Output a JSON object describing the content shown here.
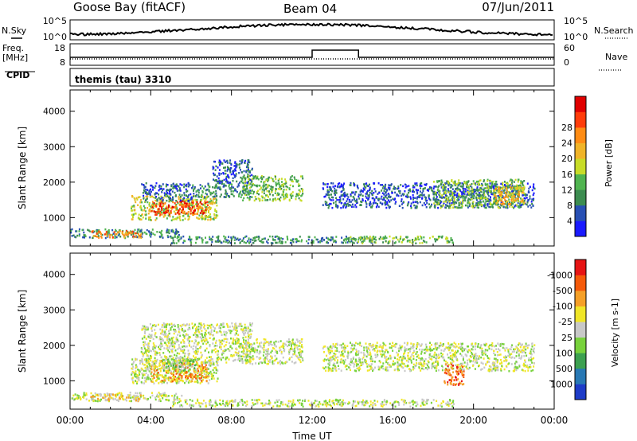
{
  "header": {
    "station": "Goose Bay (fitACF)",
    "beam": "Beam 04",
    "date": "07/Jun/2011"
  },
  "summary": {
    "nsky_label": "N.Sky",
    "nsearch_label": "N.Search",
    "nsky_ticks": [
      "10^5",
      "10^0"
    ],
    "nsearch_ticks": [
      "10^5",
      "10^0"
    ],
    "freq_label": "Freq.",
    "freq_unit": "[MHz]",
    "freq_ticks": [
      "18",
      "8"
    ],
    "nave_label": "Nave",
    "nave_ticks": [
      "60",
      "0"
    ],
    "cpid_label": "CPID",
    "cpid_value": "themis (tau) 3310"
  },
  "chart_data": [
    {
      "type": "heatmap",
      "panel": "power",
      "ylabel": "Slant Range [km]",
      "yticks": [
        1000,
        2000,
        3000,
        4000
      ],
      "ylim": [
        200,
        4600
      ],
      "xlim": [
        0,
        24
      ],
      "colorbar": {
        "label": "Power [dB]",
        "ticks": [
          "4",
          "8",
          "12",
          "16",
          "20",
          "24",
          "28"
        ],
        "colors": [
          "#1a1aff",
          "#2850b4",
          "#3c8c50",
          "#50b450",
          "#c8dc28",
          "#f0b428",
          "#ff8c14",
          "#ff3c0a",
          "#e00000"
        ]
      },
      "regions_km_vs_hour": [
        {
          "t": [
            0.0,
            5.5
          ],
          "r": [
            450,
            700
          ],
          "level": 2
        },
        {
          "t": [
            1.0,
            3.5
          ],
          "r": [
            450,
            650
          ],
          "level": 6
        },
        {
          "t": [
            3.0,
            7.3
          ],
          "r": [
            950,
            1650
          ],
          "level": 4
        },
        {
          "t": [
            4.0,
            6.8
          ],
          "r": [
            1100,
            1500
          ],
          "level": 7
        },
        {
          "t": [
            3.5,
            6.0
          ],
          "r": [
            1500,
            2000
          ],
          "level": 1
        },
        {
          "t": [
            6.0,
            9.0
          ],
          "r": [
            1600,
            2000
          ],
          "level": 2
        },
        {
          "t": [
            7.0,
            9.0
          ],
          "r": [
            2000,
            2650
          ],
          "level": 1
        },
        {
          "t": [
            8.5,
            11.5
          ],
          "r": [
            1500,
            2200
          ],
          "level": 3
        },
        {
          "t": [
            5.0,
            15.0
          ],
          "r": [
            300,
            500
          ],
          "level": 2
        },
        {
          "t": [
            13.5,
            19.0
          ],
          "r": [
            300,
            500
          ],
          "level": 3
        },
        {
          "t": [
            12.5,
            23.0
          ],
          "r": [
            1300,
            2000
          ],
          "level": 1
        },
        {
          "t": [
            18.0,
            22.5
          ],
          "r": [
            1300,
            2100
          ],
          "level": 3
        },
        {
          "t": [
            21.0,
            22.5
          ],
          "r": [
            1400,
            1900
          ],
          "level": 5
        }
      ]
    },
    {
      "type": "heatmap",
      "panel": "velocity",
      "xlabel": "Time UT",
      "ylabel": "Slant Range [km]",
      "xticks": [
        "00:00",
        "04:00",
        "08:00",
        "12:00",
        "16:00",
        "20:00",
        "00:00"
      ],
      "yticks": [
        1000,
        2000,
        3000,
        4000
      ],
      "ylim": [
        200,
        4600
      ],
      "xlim": [
        0,
        24
      ],
      "colorbar": {
        "label": "Velocity [m s-1]",
        "ticks": [
          "1000",
          "500",
          "100",
          "25",
          "-25",
          "-100",
          "-500",
          "-1000"
        ],
        "colors": [
          "#1e3cc8",
          "#2878b4",
          "#3ca050",
          "#78d23c",
          "#c8c8c8",
          "#f0e628",
          "#f5a028",
          "#f55a0a",
          "#e61414"
        ]
      },
      "regions_km_vs_hour": [
        {
          "t": [
            0.0,
            5.5
          ],
          "r": [
            450,
            700
          ],
          "level": 4
        },
        {
          "t": [
            1.0,
            3.5
          ],
          "r": [
            450,
            650
          ],
          "level": 5
        },
        {
          "t": [
            3.0,
            7.3
          ],
          "r": [
            950,
            1650
          ],
          "level": 4
        },
        {
          "t": [
            4.0,
            6.8
          ],
          "r": [
            1000,
            1600
          ],
          "level": 6
        },
        {
          "t": [
            4.5,
            6.2
          ],
          "r": [
            1300,
            1650
          ],
          "level": 3
        },
        {
          "t": [
            3.5,
            9.0
          ],
          "r": [
            1500,
            2650
          ],
          "level": 4
        },
        {
          "t": [
            8.5,
            11.5
          ],
          "r": [
            1500,
            2200
          ],
          "level": 4
        },
        {
          "t": [
            5.0,
            19.0
          ],
          "r": [
            300,
            500
          ],
          "level": 4
        },
        {
          "t": [
            12.5,
            23.0
          ],
          "r": [
            1300,
            2100
          ],
          "level": 4
        },
        {
          "t": [
            18.5,
            19.5
          ],
          "r": [
            900,
            1500
          ],
          "level": 7
        }
      ]
    }
  ]
}
